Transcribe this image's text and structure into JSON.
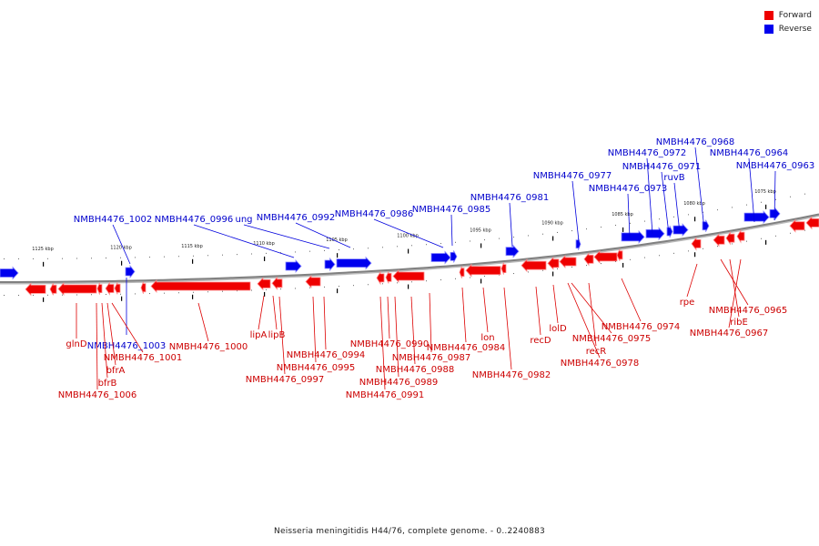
{
  "legend": {
    "forward": {
      "label": "Forward",
      "color": "#ee0000"
    },
    "reverse": {
      "label": "Reverse",
      "color": "#0000ee"
    }
  },
  "caption": "Neisseria meningitidis H44/76, complete genome. - 0..2240883",
  "backbone_color": "#808080",
  "ticks": [
    "1125 kbp",
    "1120 kbp",
    "1115 kbp",
    "1110 kbp",
    "1105 kbp",
    "1100 kbp",
    "1095 kbp",
    "1090 kbp",
    "1085 kbp",
    "1080 kbp",
    "1075 kbp"
  ],
  "reverse_labels": [
    "NMBH4476_1002",
    "NMBH4476_0996",
    "ung",
    "NMBH4476_0992",
    "NMBH4476_0986",
    "NMBH4476_0985",
    "NMBH4476_0981",
    "NMBH4476_0977",
    "NMBH4476_0973",
    "NMBH4476_0972",
    "NMBH4476_0971",
    "ruvB",
    "NMBH4476_0968",
    "NMBH4476_0964",
    "NMBH4476_0963",
    "NMBH4476_1003"
  ],
  "forward_labels": [
    "glnD",
    "NMBH4476_1001",
    "bfrA",
    "bfrB",
    "NMBH4476_1006",
    "NMBH4476_1000",
    "lipA",
    "lipB",
    "NMBH4476_0994",
    "NMBH4476_0995",
    "NMBH4476_0997",
    "NMBH4476_0990",
    "NMBH4476_0988",
    "NMBH4476_0989",
    "NMBH4476_0991",
    "NMBH4476_0987",
    "NMBH4476_0984",
    "lon",
    "NMBH4476_0982",
    "recD",
    "lolD",
    "NMBH4476_0975",
    "recR",
    "NMBH4476_0978",
    "NMBH4476_0974",
    "rpe",
    "NMBH4476_0965",
    "ribE",
    "NMBH4476_0967"
  ]
}
